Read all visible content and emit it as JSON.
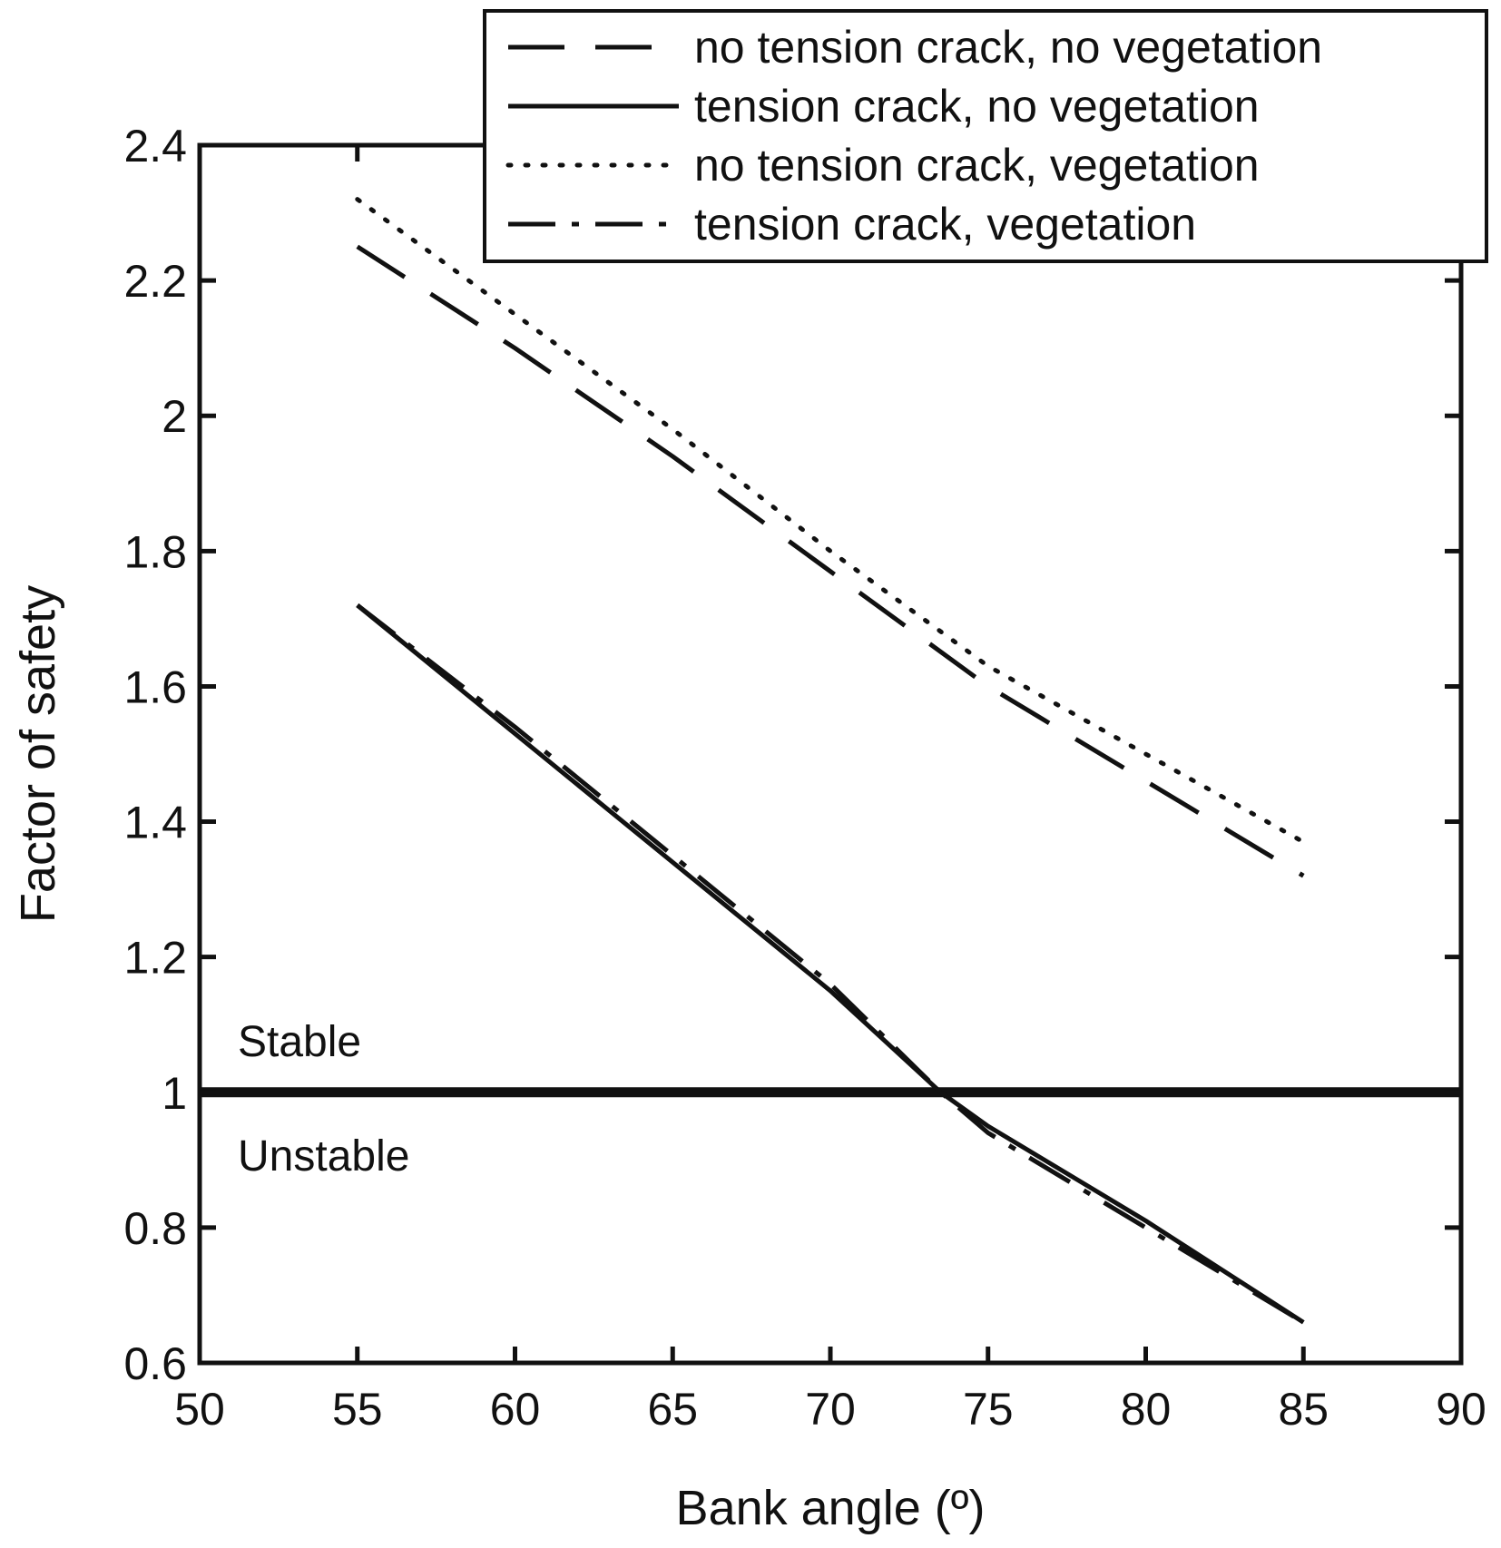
{
  "chart_data": {
    "type": "line",
    "title": "",
    "xlabel": "Bank angle (º)",
    "ylabel": "Factor of safety",
    "xlim": [
      50,
      90
    ],
    "ylim": [
      0.6,
      2.4
    ],
    "xticks": [
      50,
      55,
      60,
      65,
      70,
      75,
      80,
      85,
      90
    ],
    "xtick_labels": [
      "50",
      "55",
      "60",
      "65",
      "70",
      "75",
      "80",
      "85",
      "90"
    ],
    "yticks": [
      0.6,
      0.8,
      1.0,
      1.2,
      1.4,
      1.6,
      1.8,
      2.0,
      2.2,
      2.4
    ],
    "ytick_labels": [
      "0.6",
      "0.8",
      "1",
      "1.2",
      "1.4",
      "1.6",
      "1.8",
      "2",
      "2.2",
      "2.4"
    ],
    "grid": false,
    "legend_position": "top-right",
    "threshold": {
      "y": 1.0,
      "label_above": "Stable",
      "label_below": "Unstable"
    },
    "series": [
      {
        "name": "no tension crack, no vegetation",
        "style": "dashed",
        "x": [
          55,
          60,
          65,
          70,
          75,
          80,
          85
        ],
        "y": [
          2.25,
          2.1,
          1.94,
          1.77,
          1.6,
          1.46,
          1.32
        ]
      },
      {
        "name": "tension crack, no vegetation",
        "style": "solid",
        "x": [
          55,
          60,
          65,
          70,
          73.5,
          75,
          80,
          85
        ],
        "y": [
          1.72,
          1.53,
          1.34,
          1.15,
          1.0,
          0.95,
          0.81,
          0.66
        ]
      },
      {
        "name": "no tension crack, vegetation",
        "style": "dotted",
        "x": [
          55,
          60,
          65,
          70,
          75,
          80,
          85
        ],
        "y": [
          2.32,
          2.15,
          1.98,
          1.8,
          1.63,
          1.5,
          1.37
        ]
      },
      {
        "name": "tension crack, vegetation",
        "style": "dashdot",
        "x": [
          55,
          60,
          65,
          70,
          73.5,
          75,
          80,
          85
        ],
        "y": [
          1.72,
          1.54,
          1.35,
          1.16,
          1.0,
          0.94,
          0.8,
          0.66
        ]
      }
    ],
    "colors": {
      "lines": "#111111",
      "background": "#ffffff"
    }
  }
}
